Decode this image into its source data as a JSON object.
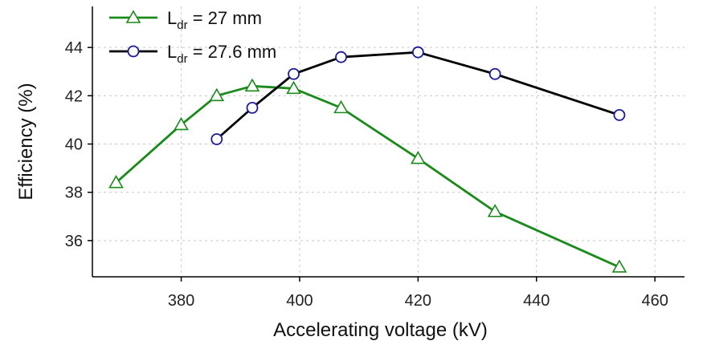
{
  "chart_data": {
    "type": "line",
    "title": "",
    "xlabel": "Accelerating voltage (kV)",
    "ylabel": "Efficiency (%)",
    "xlim": [
      365,
      465
    ],
    "ylim": [
      34.5,
      45.7
    ],
    "xticks": [
      380,
      400,
      420,
      440,
      460
    ],
    "yticks": [
      36,
      38,
      40,
      42,
      44
    ],
    "grid": true,
    "legend_position": "top-left",
    "series": [
      {
        "legend_main": "L",
        "legend_sub": "dr",
        "legend_rest": " = 27 mm",
        "color": "#1a8a1a",
        "marker": "triangle",
        "x": [
          369,
          380,
          386,
          392,
          399,
          407,
          420,
          433,
          454
        ],
        "y": [
          38.4,
          40.8,
          42.0,
          42.4,
          42.3,
          41.5,
          39.4,
          37.2,
          34.9
        ]
      },
      {
        "legend_main": "L",
        "legend_sub": "dr",
        "legend_rest": " = 27.6 mm",
        "color": "#000000",
        "marker_color": "#1a1a99",
        "marker": "circle",
        "x": [
          386,
          392,
          399,
          407,
          420,
          433,
          454
        ],
        "y": [
          40.2,
          41.5,
          42.9,
          43.6,
          43.8,
          42.9,
          41.2
        ]
      }
    ]
  }
}
